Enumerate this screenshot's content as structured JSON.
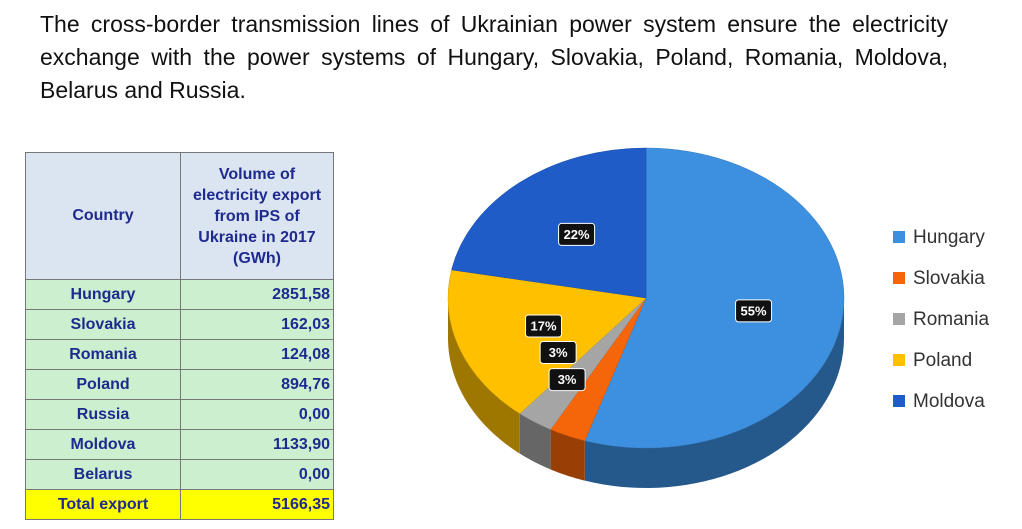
{
  "paragraph": "The cross-border transmission lines of Ukrainian power system ensure the electricity exchange with the power systems of Hungary, Slovakia, Poland, Romania, Moldova, Belarus and Russia.",
  "table": {
    "header": [
      "Country",
      "Volume of electricity export from IPS of Ukraine in 2017 (GWh)"
    ],
    "rows": [
      [
        "Hungary",
        "2851,58"
      ],
      [
        "Slovakia",
        "162,03"
      ],
      [
        "Romania",
        "124,08"
      ],
      [
        "Poland",
        "894,76"
      ],
      [
        "Russia",
        "0,00"
      ],
      [
        "Moldova",
        "1133,90"
      ],
      [
        "Belarus",
        "0,00"
      ]
    ],
    "total": [
      "Total export",
      "5166,35"
    ]
  },
  "chart_data": {
    "type": "pie",
    "categories": [
      "Hungary",
      "Slovakia",
      "Romania",
      "Poland",
      "Moldova"
    ],
    "values": [
      55,
      3,
      3,
      17,
      22
    ],
    "value_labels": [
      "55%",
      "3%",
      "3%",
      "17%",
      "22%"
    ],
    "colors": [
      "#3d8fe0",
      "#f5650a",
      "#a5a5a5",
      "#ffc000",
      "#1f5cc8"
    ]
  }
}
